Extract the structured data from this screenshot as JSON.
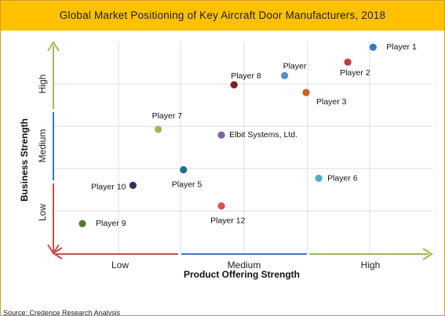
{
  "chart_data": {
    "type": "scatter",
    "title": "Global Market Positioning of Key Aircraft Door Manufacturers, 2018",
    "xlabel": "Product Offering Strength",
    "ylabel": "Business Strength",
    "x_ticks": [
      "Low",
      "Medium",
      "High"
    ],
    "y_ticks": [
      "Low",
      "Medium",
      "High"
    ],
    "xlim": [
      0,
      3
    ],
    "ylim": [
      0,
      3
    ],
    "grid": true,
    "points": [
      {
        "label": "Player 1",
        "x": 2.53,
        "y": 2.92,
        "color": "#3a78c4"
      },
      {
        "label": "Player 2",
        "x": 2.33,
        "y": 2.71,
        "color": "#c0403c"
      },
      {
        "label": "Player",
        "x": 1.83,
        "y": 2.52,
        "color": "#5b8dc8"
      },
      {
        "label": "Player 8",
        "x": 1.43,
        "y": 2.39,
        "color": "#7b1f1f"
      },
      {
        "label": "Player 3",
        "x": 2.0,
        "y": 2.28,
        "color": "#d0601e"
      },
      {
        "label": "Player 7",
        "x": 0.83,
        "y": 1.76,
        "color": "#9bbb59"
      },
      {
        "label": "Elbit Systems, Ltd.",
        "x": 1.33,
        "y": 1.68,
        "color": "#7f5fa8"
      },
      {
        "label": "Player 5",
        "x": 1.03,
        "y": 1.19,
        "color": "#1f7090"
      },
      {
        "label": "Player 6",
        "x": 2.1,
        "y": 1.07,
        "color": "#4bacc6"
      },
      {
        "label": "Player 10",
        "x": 0.63,
        "y": 0.97,
        "color": "#3f2a5a"
      },
      {
        "label": "Player 12",
        "x": 1.33,
        "y": 0.68,
        "color": "#d9534f"
      },
      {
        "label": "Player 9",
        "x": 0.23,
        "y": 0.43,
        "color": "#4f7a28"
      }
    ]
  },
  "source_text": "Source: Credence Research Analysis",
  "colors": {
    "title_bar": "#ffc000",
    "x_axis_low": "#c0504d",
    "x_axis_mid": "#4472c4",
    "x_axis_high": "#9bbb59",
    "y_axis_low": "#c0504d",
    "y_axis_mid": "#4472c4",
    "y_axis_high": "#9bbb59",
    "grid": "#d9dde3"
  }
}
